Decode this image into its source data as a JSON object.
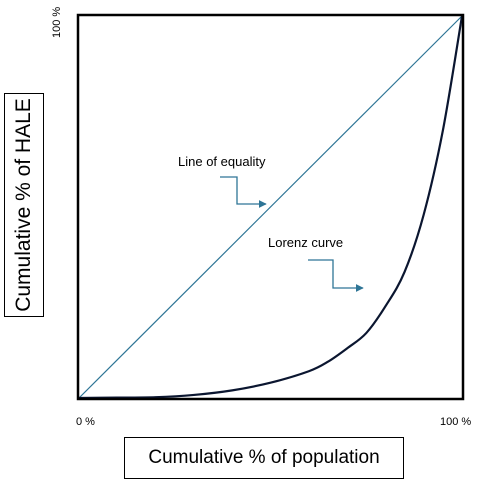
{
  "chart_data": {
    "type": "line",
    "xlabel": "Cumulative % of population",
    "ylabel": "Cumulative % of HALE",
    "xlim": [
      0,
      100
    ],
    "ylim": [
      0,
      100
    ],
    "x_tick_labels": [
      "0 %",
      "100 %"
    ],
    "y_tick_labels": [
      "100 %"
    ],
    "grid": false,
    "series": [
      {
        "key": "equality",
        "color": "#2e7596",
        "x": [
          0,
          100
        ],
        "y": [
          0,
          100
        ]
      },
      {
        "key": "lorenz",
        "color": "#0b1630",
        "x": [
          0,
          10,
          20,
          30,
          40,
          50,
          60,
          65,
          70,
          75,
          80,
          85,
          90,
          95,
          100
        ],
        "y": [
          0,
          0.1,
          0.2,
          0.8,
          2,
          4,
          7,
          9.5,
          13,
          17,
          24,
          33,
          48,
          70,
          100
        ]
      }
    ],
    "annotations": [
      {
        "key": "equality",
        "text": "Line of equality",
        "x": 48,
        "y": 48
      },
      {
        "key": "lorenz",
        "text": "Lorenz curve",
        "x": 74,
        "y": 29
      }
    ]
  }
}
